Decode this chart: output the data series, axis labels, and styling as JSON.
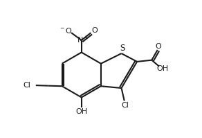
{
  "background_color": "#ffffff",
  "bond_color": "#1a1a1a",
  "line_width": 1.5,
  "figsize": [
    2.92,
    1.99
  ],
  "dpi": 100,
  "xlim": [
    0,
    10
  ],
  "ylim": [
    0,
    7
  ]
}
